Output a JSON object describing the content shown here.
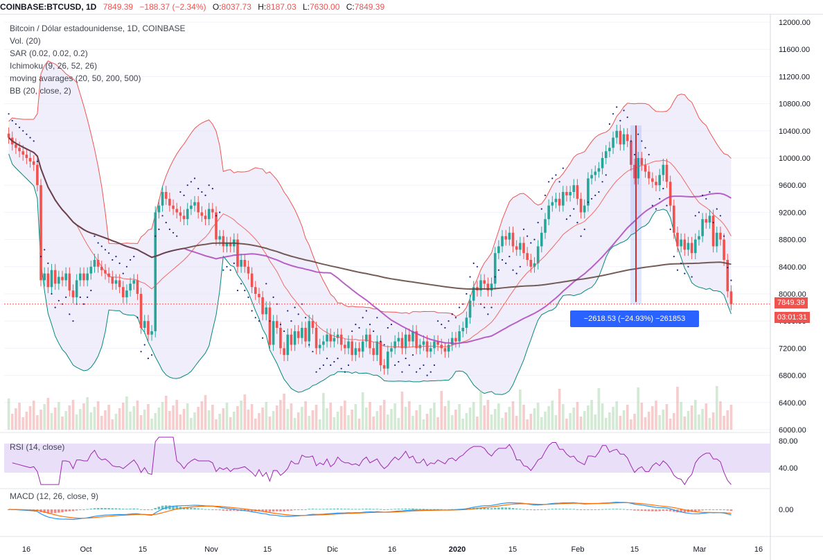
{
  "header": {
    "symbol": "COINBASE:BTCUSD, 1D",
    "last": "7849.39",
    "change": "−188.37 (−2.34%)",
    "open_label": "O:",
    "open": "8037.73",
    "high_label": "H:",
    "high": "8187.03",
    "low_label": "L:",
    "low": "7630.00",
    "close_label": "C:",
    "close": "7849.39"
  },
  "legend": {
    "title": "Bitcoin / Dólar estadounidense, 1D, COINBASE",
    "vol": "Vol. (20)",
    "sar": "SAR (0.02, 0.02, 0.2)",
    "ichimoku": "Ichimoku (9, 26, 52, 26)",
    "ma": "moving avarages (20, 50, 200, 500)",
    "bb": "BB (20, close, 2)"
  },
  "rsi_title": "RSI (14, close)",
  "macd_title": "MACD (12, 26, close, 9)",
  "price_badge": "7849.39",
  "time_badge": "03:01:31",
  "measure_label": "−2618.53 (−24.93%) −261853",
  "colors": {
    "up": "#26a69a",
    "down": "#ef5350",
    "badge": "#ef5350",
    "measure": "#2962ff",
    "rsi_band": "#e5d7f7"
  },
  "chart_data": {
    "type": "candlestick",
    "price_axis": {
      "min": 6000,
      "max": 12000,
      "ticks": [
        "12000.00",
        "11600.00",
        "11200.00",
        "10800.00",
        "10400.00",
        "10000.00",
        "9600.00",
        "9200.00",
        "8800.00",
        "8400.00",
        "8000.00",
        "7600.00",
        "7200.00",
        "6800.00",
        "6400.00",
        "6000.00"
      ]
    },
    "rsi_axis": {
      "ticks": [
        "80.00",
        "40.00"
      ]
    },
    "macd_axis": {
      "ticks": [
        "0.00"
      ]
    },
    "time_axis": [
      "16",
      "Oct",
      "15",
      "Nov",
      "15",
      "Dic",
      "16",
      "2020",
      "15",
      "Feb",
      "15",
      "Mar",
      "16"
    ],
    "closes": [
      10300,
      10200,
      10150,
      10100,
      10050,
      10000,
      9950,
      9900,
      9600,
      8200,
      8300,
      8100,
      8350,
      8150,
      8250,
      8200,
      8300,
      8050,
      7950,
      8200,
      8300,
      8200,
      8300,
      8400,
      8500,
      8400,
      8350,
      8300,
      8250,
      8150,
      8200,
      8100,
      7950,
      8050,
      8150,
      8200,
      8000,
      7500,
      7600,
      7400,
      7450,
      9200,
      9300,
      9500,
      9400,
      9300,
      9250,
      9200,
      9150,
      9100,
      9250,
      9300,
      9350,
      9200,
      9150,
      9100,
      9250,
      9200,
      8800,
      8850,
      8700,
      8750,
      8700,
      8800,
      8400,
      8500,
      8400,
      8300,
      8100,
      8000,
      7950,
      7700,
      7800,
      7250,
      7600,
      7500,
      7200,
      7100,
      7400,
      7250,
      7450,
      7350,
      7500,
      7300,
      7600,
      7500,
      7200,
      7250,
      7300,
      7400,
      7300,
      7350,
      7400,
      7250,
      7200,
      7300,
      7100,
      7200,
      7150,
      7300,
      7400,
      7200,
      7100,
      7300,
      6950,
      6900,
      7150,
      7200,
      7300,
      7350,
      7200,
      7400,
      7300,
      7450,
      7200,
      7250,
      7300,
      7150,
      7200,
      7300,
      7250,
      7200,
      7150,
      7250,
      7350,
      7300,
      7450,
      7500,
      7650,
      7900,
      8100,
      8050,
      8200,
      8150,
      8050,
      8150,
      8600,
      8700,
      8850,
      8800,
      8900,
      8700,
      8650,
      8750,
      8600,
      8500,
      8400,
      8450,
      8700,
      8900,
      9100,
      9300,
      9350,
      9400,
      9300,
      9500,
      9450,
      9500,
      9600,
      9400,
      9200,
      9300,
      9700,
      9750,
      9800,
      9850,
      10000,
      10100,
      10150,
      10300,
      10400,
      10200,
      10350,
      10250,
      9900,
      9700,
      10000,
      9900,
      9800,
      9700,
      9650,
      9600,
      9750,
      9900,
      9650,
      9300,
      8900,
      8700,
      8800,
      8650,
      8750,
      8600,
      8800,
      8850,
      9100,
      9050,
      9150,
      8700,
      8900,
      8800,
      8500,
      8037,
      7849
    ],
    "volume_max": 1,
    "note": ""
  }
}
